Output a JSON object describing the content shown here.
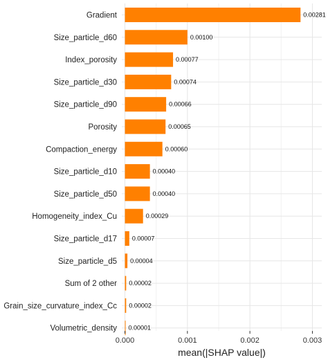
{
  "chart_data": {
    "type": "bar",
    "orientation": "horizontal",
    "categories": [
      "Gradient",
      "Size_particle_d60",
      "Index_porosity",
      "Size_particle_d30",
      "Size_particle_d90",
      "Porosity",
      "Compaction_energy",
      "Size_particle_d10",
      "Size_particle_d50",
      "Homogeneity_index_Cu",
      "Size_particle_d17",
      "Size_particle_d5",
      "Sum of 2 other",
      "Grain_size_curvature_index_Cc",
      "Volumetric_density"
    ],
    "values": [
      0.00281,
      0.001,
      0.00077,
      0.00074,
      0.00066,
      0.00065,
      0.0006,
      0.0004,
      0.0004,
      0.00029,
      7e-05,
      4e-05,
      2e-05,
      2e-05,
      1e-05
    ],
    "value_labels": [
      "0.00281",
      "0.00100",
      "0.00077",
      "0.00074",
      "0.00066",
      "0.00065",
      "0.00060",
      "0.00040",
      "0.00040",
      "0.00029",
      "0.00007",
      "0.00004",
      "0.00002",
      "0.00002",
      "0.00001"
    ],
    "xlabel": "mean(|SHAP value|)",
    "xlim": [
      -5e-05,
      0.00315
    ],
    "xticks": [
      0.0,
      0.001,
      0.002,
      0.003
    ],
    "xtick_labels": [
      "0.000",
      "0.001",
      "0.002",
      "0.003"
    ],
    "grid": true,
    "bar_color": "#ff8000",
    "grid_color": "#e6e6e6",
    "legend": "none"
  }
}
